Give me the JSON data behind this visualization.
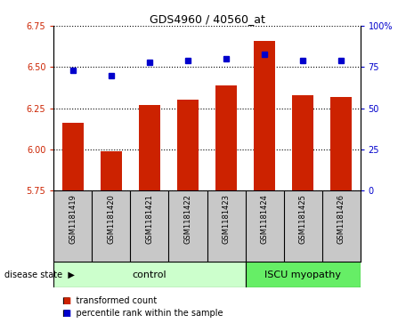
{
  "title": "GDS4960 / 40560_at",
  "samples": [
    "GSM1181419",
    "GSM1181420",
    "GSM1181421",
    "GSM1181422",
    "GSM1181423",
    "GSM1181424",
    "GSM1181425",
    "GSM1181426"
  ],
  "bar_values": [
    6.16,
    5.99,
    6.27,
    6.3,
    6.39,
    6.66,
    6.33,
    6.32
  ],
  "bar_bottom": 5.75,
  "percentile_values": [
    73,
    70,
    78,
    79,
    80,
    83,
    79,
    79
  ],
  "left_ylim": [
    5.75,
    6.75
  ],
  "right_ylim": [
    0,
    100
  ],
  "left_yticks": [
    5.75,
    6.0,
    6.25,
    6.5,
    6.75
  ],
  "right_yticks": [
    0,
    25,
    50,
    75,
    100
  ],
  "bar_color": "#cc2200",
  "dot_color": "#0000cc",
  "bar_width": 0.55,
  "control_samples": 5,
  "control_label": "control",
  "disease_label": "ISCU myopathy",
  "disease_state_label": "disease state",
  "control_bg": "#ccffcc",
  "disease_bg": "#66ee66",
  "legend_bar_label": "transformed count",
  "legend_dot_label": "percentile rank within the sample",
  "xlabel_area_bg": "#c8c8c8",
  "right_tick_labels": [
    "0",
    "25",
    "50",
    "75",
    "100%"
  ]
}
